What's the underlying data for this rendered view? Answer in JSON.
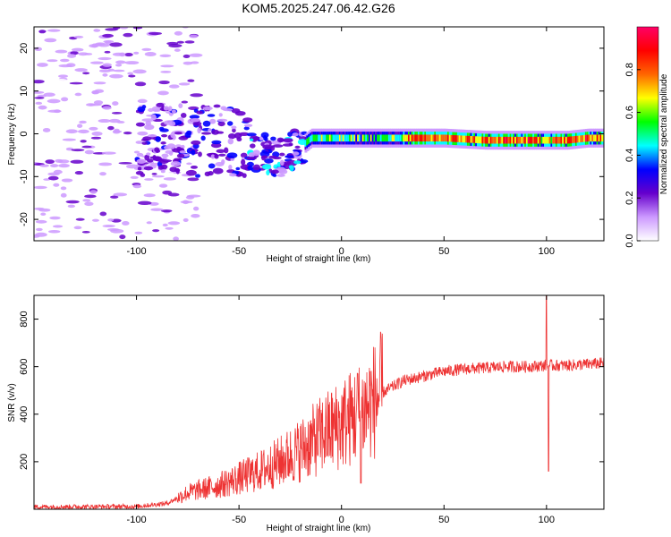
{
  "title": "KOM5.2025.247.06.42.G26",
  "chart_data": [
    {
      "type": "heatmap",
      "xlabel": "Height of straight line (km)",
      "ylabel": "Frequency (Hz)",
      "xlim": [
        -150,
        128
      ],
      "ylim": [
        -25,
        25
      ],
      "xticks": [
        -100,
        -50,
        0,
        50,
        100
      ],
      "yticks": [
        -20,
        -10,
        0,
        10,
        20
      ],
      "xtick_labels": [
        "-100",
        "-50",
        "0",
        "50",
        "100"
      ],
      "ytick_labels": [
        "-20",
        "-10",
        "0",
        "10",
        "20"
      ],
      "colorbar": {
        "label": "Normalized spectral amplitude",
        "range": [
          0,
          1
        ],
        "ticks": [
          0.0,
          0.2,
          0.4,
          0.6,
          0.8
        ],
        "tick_labels": [
          "0.0",
          "0.2",
          "0.4",
          "0.6",
          "0.8"
        ],
        "colormap": [
          "#ffffff",
          "#cc99ff",
          "#6600cc",
          "#0000ff",
          "#00ffff",
          "#00ff00",
          "#ffff00",
          "#ff6600",
          "#ff0000",
          "#ff0066"
        ]
      },
      "ridge": {
        "x": [
          -100,
          -90,
          -80,
          -70,
          -60,
          -50,
          -45,
          -40,
          -35,
          -30,
          -25,
          -20,
          -15,
          -10,
          -5,
          0,
          10,
          20,
          30,
          50,
          70,
          90,
          100,
          110,
          120,
          128
        ],
        "freq": [
          -2,
          -1,
          -1,
          -2,
          -1,
          -2,
          -4,
          -4,
          -5,
          -6,
          -4,
          -3,
          -1,
          -1,
          -1,
          -1,
          -1,
          -1,
          -1,
          -1,
          -1.5,
          -1.5,
          -1.5,
          -1.5,
          -1,
          -1
        ]
      }
    },
    {
      "type": "line",
      "xlabel": "Height of straight line (km)",
      "ylabel": "SNR (v/v)",
      "xlim": [
        -150,
        128
      ],
      "ylim": [
        0,
        900
      ],
      "xticks": [
        -100,
        -50,
        0,
        50,
        100
      ],
      "yticks": [
        200,
        400,
        600,
        800
      ],
      "xtick_labels": [
        "-100",
        "-50",
        "0",
        "50",
        "100"
      ],
      "ytick_labels": [
        "200",
        "400",
        "600",
        "800"
      ],
      "line_color": "#ee3333",
      "trend": {
        "x": [
          -150,
          -100,
          -85,
          -75,
          -60,
          -50,
          -40,
          -30,
          -20,
          -10,
          0,
          10,
          20,
          30,
          40,
          50,
          60,
          70,
          80,
          90,
          100,
          110,
          120,
          128
        ],
        "y": [
          10,
          12,
          25,
          70,
          100,
          130,
          160,
          200,
          250,
          310,
          360,
          410,
          490,
          540,
          560,
          580,
          590,
          595,
          600,
          600,
          605,
          605,
          610,
          615
        ]
      },
      "spikes": [
        {
          "x": 8,
          "y": 570
        },
        {
          "x": 9.5,
          "y": 110
        },
        {
          "x": 100,
          "y": 900
        },
        {
          "x": 101,
          "y": 160
        }
      ]
    }
  ]
}
